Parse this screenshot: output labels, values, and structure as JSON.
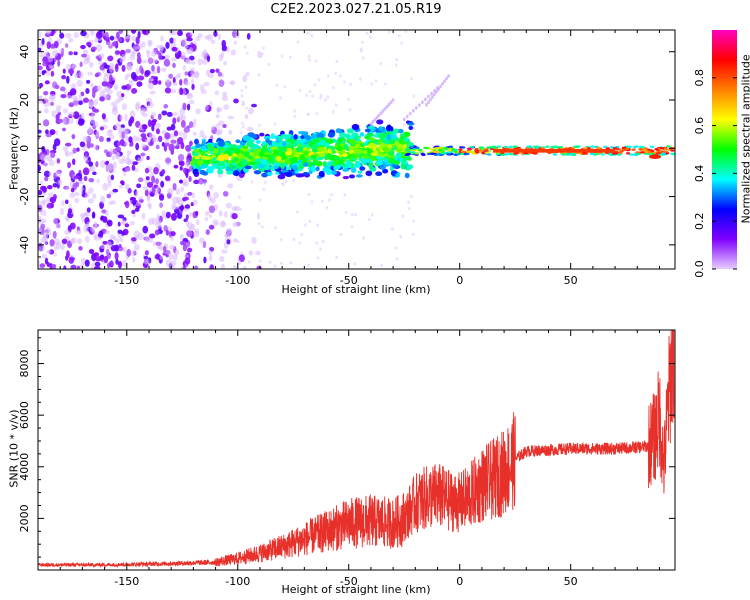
{
  "title": "C2E2.2023.027.21.05.R19",
  "chart_data": [
    {
      "type": "heatmap",
      "name": "spectrogram",
      "xlabel": "Height of straight line (km)",
      "ylabel": "Frequency (Hz)",
      "xlim": [
        -190,
        97
      ],
      "ylim": [
        -50,
        49
      ],
      "xticks": [
        -150,
        -100,
        -50,
        0,
        50
      ],
      "xtick_labels": [
        "-150",
        "-100",
        "-50",
        "0",
        "50"
      ],
      "yticks": [
        -40,
        -20,
        0,
        20,
        40
      ],
      "ytick_labels": [
        "-40",
        "-20",
        "0",
        "20",
        "40"
      ],
      "colorbar": {
        "label": "Normalized spectral amplitude",
        "range": [
          0,
          1
        ],
        "ticks": [
          0.0,
          0.2,
          0.4,
          0.6,
          0.8
        ],
        "tick_labels": [
          "0.0",
          "0.2",
          "0.4",
          "0.6",
          "0.8"
        ],
        "colormap": [
          "#e6ccff",
          "#8000ff",
          "#0000ff",
          "#00ffff",
          "#00ff00",
          "#ffff00",
          "#ff8000",
          "#ff0000",
          "#ff00c0"
        ]
      },
      "regions": [
        {
          "x_range": [
            -190,
            -118
          ],
          "y_range": [
            -50,
            49
          ],
          "amplitude": 0.05,
          "description": "scattered noise"
        },
        {
          "x_range": [
            -118,
            -25
          ],
          "y_range": [
            -15,
            8
          ],
          "amplitude": 0.3,
          "description": "broad band around 0 Hz"
        },
        {
          "x_range": [
            -25,
            90
          ],
          "y_range": [
            -3,
            1
          ],
          "amplitude": 0.85,
          "description": "narrow strong line near -1 Hz"
        }
      ]
    },
    {
      "type": "line",
      "name": "snr",
      "xlabel": "Height of straight line (km)",
      "ylabel": "SNR (10 * v/v)",
      "xlim": [
        -190,
        97
      ],
      "ylim": [
        0,
        9300
      ],
      "xticks": [
        -150,
        -100,
        -50,
        0,
        50
      ],
      "xtick_labels": [
        "-150",
        "-100",
        "-50",
        "0",
        "50"
      ],
      "yticks": [
        2000,
        4000,
        6000,
        8000
      ],
      "ytick_labels": [
        "2000",
        "4000",
        "6000",
        "8000"
      ],
      "color": "#e8302a",
      "envelope": {
        "x": [
          -190,
          -160,
          -130,
          -110,
          -100,
          -90,
          -80,
          -70,
          -60,
          -50,
          -40,
          -30,
          -25,
          -20,
          -15,
          -10,
          -5,
          0,
          5,
          10,
          15,
          20,
          25,
          30,
          40,
          50,
          60,
          70,
          80,
          85,
          88,
          90,
          92,
          94,
          95,
          96
        ],
        "y": [
          200,
          200,
          250,
          300,
          450,
          650,
          900,
          1200,
          1500,
          1800,
          1900,
          1800,
          2000,
          2600,
          2800,
          2900,
          2700,
          2600,
          2900,
          3300,
          3500,
          3800,
          4300,
          4600,
          4650,
          4700,
          4700,
          4700,
          4750,
          4800,
          5200,
          6000,
          4000,
          6500,
          7500,
          8500
        ]
      }
    }
  ]
}
